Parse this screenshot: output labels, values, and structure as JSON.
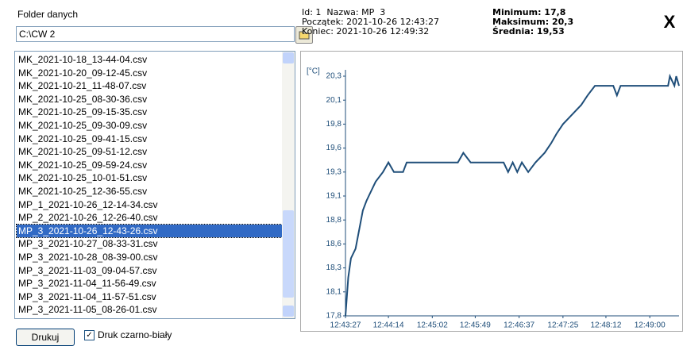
{
  "folder_label": "Folder danych",
  "folder_path": "C:\\CW 2",
  "info": {
    "line1": "Id: 1  Nazwa: MP  3",
    "start": "Początek: 2021-10-26 12:43:27",
    "end": "Koniec: 2021-10-26 12:49:32",
    "min": "Minimum: 17,8",
    "max": "Maksimum: 20,3",
    "avg": "Średnia: 19,53"
  },
  "close": "X",
  "files": [
    "MK_2021-10-18_13-44-04.csv",
    "MK_2021-10-20_09-12-45.csv",
    "MK_2021-10-21_11-48-07.csv",
    "MK_2021-10-25_08-30-36.csv",
    "MK_2021-10-25_09-15-35.csv",
    "MK_2021-10-25_09-30-09.csv",
    "MK_2021-10-25_09-41-15.csv",
    "MK_2021-10-25_09-51-12.csv",
    "MK_2021-10-25_09-59-24.csv",
    "MK_2021-10-25_10-01-51.csv",
    "MK_2021-10-25_12-36-55.csv",
    "MP_1_2021-10-26_12-14-34.csv",
    "MP_2_2021-10-26_12-26-40.csv",
    "MP_3_2021-10-26_12-43-26.csv",
    "MP_3_2021-10-27_08-33-31.csv",
    "MP_3_2021-10-28_08-39-00.csv",
    "MP_3_2021-11-03_09-04-57.csv",
    "MP_3_2021-11-04_11-56-49.csv",
    "MP_3_2021-11-04_11-57-51.csv",
    "MP_3_2021-11-05_08-26-01.csv"
  ],
  "selected_index": 13,
  "print_button": "Drukuj",
  "bw_checkbox": {
    "label": "Druk czarno-biały",
    "checked": true
  },
  "chart_data": {
    "type": "line",
    "ylabel": "[°C]",
    "color": "#1f4e79",
    "x": [
      "12:43:27",
      "12:43:30",
      "12:43:33",
      "12:43:38",
      "12:43:42",
      "12:43:46",
      "12:43:50",
      "12:43:55",
      "12:44:00",
      "12:44:08",
      "12:44:14",
      "12:44:20",
      "12:44:30",
      "12:44:34",
      "12:45:30",
      "12:45:36",
      "12:45:44",
      "12:46:20",
      "12:46:25",
      "12:46:30",
      "12:46:35",
      "12:46:40",
      "12:46:47",
      "12:46:55",
      "12:47:05",
      "12:47:12",
      "12:47:18",
      "12:47:25",
      "12:47:35",
      "12:47:45",
      "12:47:52",
      "12:48:00",
      "12:48:20",
      "12:48:24",
      "12:48:28",
      "12:49:20",
      "12:49:22",
      "12:49:27",
      "12:49:29",
      "12:49:32"
    ],
    "values": [
      17.8,
      18.2,
      18.4,
      18.5,
      18.7,
      18.9,
      19.0,
      19.1,
      19.2,
      19.3,
      19.4,
      19.3,
      19.3,
      19.4,
      19.4,
      19.5,
      19.4,
      19.4,
      19.3,
      19.4,
      19.3,
      19.4,
      19.3,
      19.4,
      19.5,
      19.6,
      19.7,
      19.8,
      19.9,
      20.0,
      20.1,
      20.2,
      20.2,
      20.1,
      20.2,
      20.2,
      20.3,
      20.2,
      20.3,
      20.2
    ],
    "xlim": [
      "12:43:27",
      "12:49:32"
    ],
    "xticks": [
      "12:43:27",
      "12:44:14",
      "12:45:02",
      "12:45:49",
      "12:46:37",
      "12:47:25",
      "12:48:12",
      "12:49:00"
    ],
    "ylim": [
      17.8,
      20.3
    ],
    "yticks": [
      {
        "value": 17.8,
        "label": "17,8"
      },
      {
        "value": 18.05,
        "label": "18,1"
      },
      {
        "value": 18.3,
        "label": "18,3"
      },
      {
        "value": 18.55,
        "label": "18,6"
      },
      {
        "value": 18.8,
        "label": "18,8"
      },
      {
        "value": 19.05,
        "label": "19,1"
      },
      {
        "value": 19.3,
        "label": "19,3"
      },
      {
        "value": 19.55,
        "label": "19,6"
      },
      {
        "value": 19.8,
        "label": "19,8"
      },
      {
        "value": 20.05,
        "label": "20,1"
      },
      {
        "value": 20.3,
        "label": "20,3"
      }
    ],
    "grid": false
  }
}
